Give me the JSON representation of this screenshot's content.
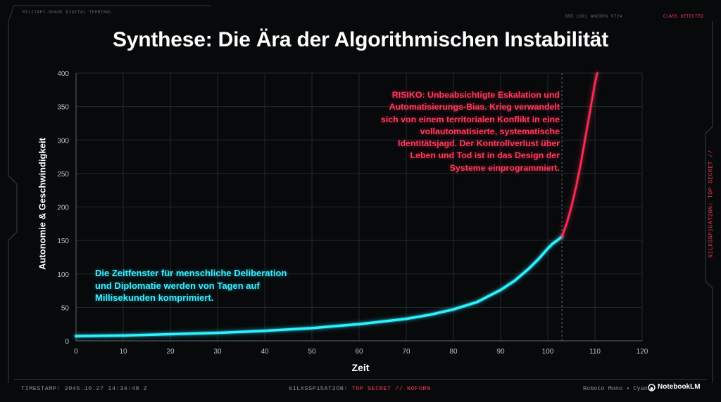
{
  "header": {
    "terminal_label": "MILITARY-GRADE DIGITAL TERMINAL",
    "top_codes": "ORD 1901 ANODPN V724",
    "alert": "CLASS DETECTED"
  },
  "annotations": {
    "risk": "RISIKO: Unbeabsichtigte Eskalation und Automatisierungs-Bias. Krieg verwandelt sich von einem territorialen Konflikt in eine vollautomatisierte, systematische Identitätsjagd. Der Kontrollverlust über Leben und Tod ist in das Design der Systeme einprogrammiert.",
    "cyan_note": "Die Zeitfenster für menschliche Deliberation und Diplomatie werden von Tagen auf Millisekunden komprimiert."
  },
  "footer": {
    "timestamp": "TIMESTAMP: 2045.10.27 14:34:48 Z",
    "classification_code": "61LXSSP15AT2ON:",
    "classification_level": "TOP SECRET // NOFORN",
    "font_note": "Roboto Mono • Cyan",
    "brand": "NotebookLM"
  },
  "side": {
    "vertical_code": "61LXSSP15AT2ON: TOP SECRET //"
  },
  "colors": {
    "background": "#07090b",
    "grid": "#1f2a2e",
    "curve": "#2ef2ff",
    "danger": "#ff2d55",
    "text": "#ffffff"
  },
  "chart_data": {
    "type": "line",
    "title": "Synthese: Die Ära der Algorithmischen Instabilität",
    "xlabel": "Zeit",
    "ylabel": "Autonomie & Geschwindigkeit",
    "xlim": [
      0,
      120
    ],
    "ylim": [
      0,
      400
    ],
    "xticks": [
      0,
      10,
      20,
      30,
      40,
      50,
      60,
      70,
      80,
      90,
      100,
      110,
      120
    ],
    "yticks": [
      0,
      50,
      100,
      150,
      200,
      250,
      300,
      350,
      400
    ],
    "grid": true,
    "threshold_x": 103,
    "series": [
      {
        "color": "#2ef2ff",
        "x": [
          0,
          10,
          20,
          30,
          40,
          50,
          60,
          70,
          75,
          80,
          85,
          90,
          93,
          96,
          98,
          100,
          101,
          102,
          103
        ],
        "y": [
          7,
          8,
          10,
          12,
          15,
          19,
          25,
          33,
          39,
          47,
          58,
          76,
          90,
          108,
          122,
          138,
          145,
          150,
          156
        ]
      },
      {
        "color": "#ff2d55",
        "x": [
          103,
          104,
          105,
          106,
          107,
          108,
          109,
          110,
          110.5
        ],
        "y": [
          156,
          175,
          200,
          230,
          265,
          305,
          345,
          385,
          400
        ]
      }
    ]
  }
}
